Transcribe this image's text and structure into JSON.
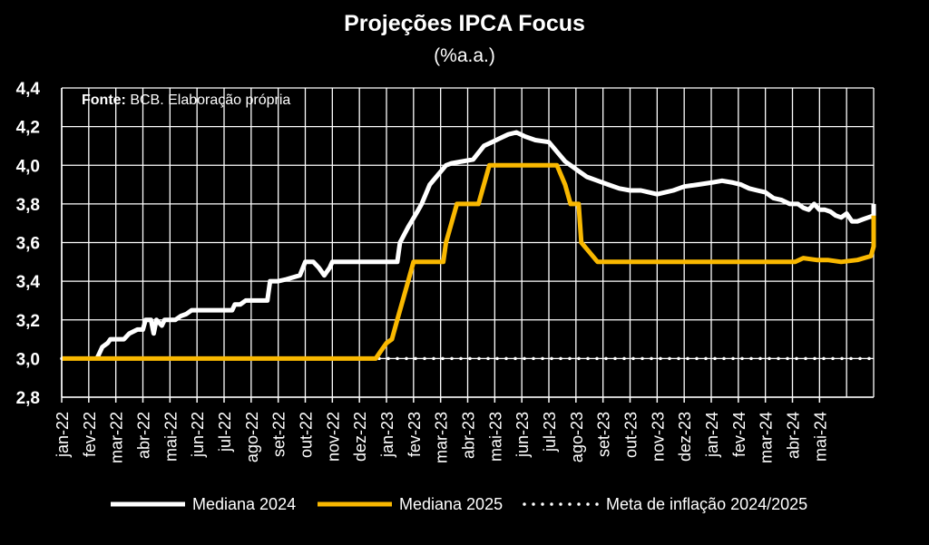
{
  "chart_data": {
    "type": "line",
    "title": "Projeções IPCA Focus",
    "subtitle": "(%a.a.)",
    "source_label": "Fonte:",
    "source_text": " BCB. Elaboração própria",
    "ylim": [
      2.8,
      4.4
    ],
    "y_ticks": [
      "4,4",
      "4,2",
      "4,0",
      "3,8",
      "3,6",
      "3,4",
      "3,2",
      "3,0",
      "2,8"
    ],
    "y_tick_values": [
      4.4,
      4.2,
      4.0,
      3.8,
      3.6,
      3.4,
      3.2,
      3.0,
      2.8
    ],
    "categories": [
      "jan-22",
      "fev-22",
      "mar-22",
      "abr-22",
      "mai-22",
      "jun-22",
      "jul-22",
      "ago-22",
      "set-22",
      "out-22",
      "nov-22",
      "dez-22",
      "jan-23",
      "fev-23",
      "mar-23",
      "abr-23",
      "mai-23",
      "jun-23",
      "jul-23",
      "ago-23",
      "set-23",
      "out-23",
      "nov-23",
      "dez-23",
      "jan-24",
      "fev-24",
      "mar-24",
      "abr-24",
      "mai-24"
    ],
    "x_max": 30,
    "grid": true,
    "legend_position": "bottom",
    "series": [
      {
        "name": "Mediana 2024",
        "color": "#ffffff",
        "style": "solid",
        "points": [
          [
            1.3,
            3.0
          ],
          [
            1.4,
            3.03
          ],
          [
            1.5,
            3.06
          ],
          [
            1.7,
            3.08
          ],
          [
            1.8,
            3.1
          ],
          [
            2.3,
            3.1
          ],
          [
            2.5,
            3.13
          ],
          [
            2.8,
            3.15
          ],
          [
            3.0,
            3.15
          ],
          [
            3.1,
            3.2
          ],
          [
            3.3,
            3.2
          ],
          [
            3.4,
            3.13
          ],
          [
            3.5,
            3.2
          ],
          [
            3.7,
            3.17
          ],
          [
            3.8,
            3.2
          ],
          [
            4.2,
            3.2
          ],
          [
            4.4,
            3.22
          ],
          [
            4.6,
            3.23
          ],
          [
            4.8,
            3.25
          ],
          [
            6.3,
            3.25
          ],
          [
            6.4,
            3.28
          ],
          [
            6.6,
            3.28
          ],
          [
            6.8,
            3.3
          ],
          [
            7.6,
            3.3
          ],
          [
            7.7,
            3.4
          ],
          [
            8.0,
            3.4
          ],
          [
            8.3,
            3.41
          ],
          [
            8.8,
            3.43
          ],
          [
            9.0,
            3.5
          ],
          [
            9.3,
            3.5
          ],
          [
            9.5,
            3.47
          ],
          [
            9.7,
            3.43
          ],
          [
            9.9,
            3.47
          ],
          [
            10.0,
            3.5
          ],
          [
            12.4,
            3.5
          ],
          [
            12.5,
            3.6
          ],
          [
            12.8,
            3.68
          ],
          [
            13.1,
            3.75
          ],
          [
            13.3,
            3.8
          ],
          [
            13.6,
            3.9
          ],
          [
            13.9,
            3.95
          ],
          [
            14.2,
            4.0
          ],
          [
            14.4,
            4.01
          ],
          [
            14.8,
            4.02
          ],
          [
            15.2,
            4.03
          ],
          [
            15.6,
            4.1
          ],
          [
            15.9,
            4.12
          ],
          [
            16.2,
            4.14
          ],
          [
            16.5,
            4.16
          ],
          [
            16.8,
            4.17
          ],
          [
            17.1,
            4.15
          ],
          [
            17.5,
            4.13
          ],
          [
            18.0,
            4.12
          ],
          [
            18.3,
            4.07
          ],
          [
            18.6,
            4.02
          ],
          [
            19.0,
            3.98
          ],
          [
            19.4,
            3.94
          ],
          [
            19.8,
            3.92
          ],
          [
            20.2,
            3.9
          ],
          [
            20.6,
            3.88
          ],
          [
            21.0,
            3.87
          ],
          [
            21.4,
            3.87
          ],
          [
            21.7,
            3.86
          ],
          [
            22.0,
            3.85
          ],
          [
            22.3,
            3.86
          ],
          [
            22.6,
            3.87
          ],
          [
            23.0,
            3.89
          ],
          [
            23.5,
            3.9
          ],
          [
            24.0,
            3.91
          ],
          [
            24.4,
            3.92
          ],
          [
            24.8,
            3.91
          ],
          [
            25.1,
            3.9
          ],
          [
            25.4,
            3.88
          ],
          [
            25.7,
            3.87
          ],
          [
            26.0,
            3.86
          ],
          [
            26.3,
            3.83
          ],
          [
            26.6,
            3.82
          ],
          [
            26.9,
            3.8
          ],
          [
            27.2,
            3.8
          ],
          [
            27.4,
            3.78
          ],
          [
            27.6,
            3.77
          ],
          [
            27.8,
            3.8
          ],
          [
            28.0,
            3.77
          ],
          [
            28.2,
            3.77
          ],
          [
            28.4,
            3.76
          ],
          [
            28.6,
            3.74
          ],
          [
            28.8,
            3.73
          ],
          [
            29.0,
            3.75
          ],
          [
            29.2,
            3.71
          ],
          [
            29.4,
            3.71
          ],
          [
            29.6,
            3.72
          ],
          [
            29.8,
            3.73
          ],
          [
            30.0,
            3.74
          ],
          [
            30.2,
            3.73
          ],
          [
            30.4,
            3.73
          ],
          [
            30.6,
            3.76
          ],
          [
            30.8,
            3.78
          ],
          [
            31.0,
            3.8
          ]
        ]
      },
      {
        "name": "Mediana 2025",
        "color": "#f9b800",
        "style": "solid",
        "points": [
          [
            0.0,
            3.0
          ],
          [
            11.6,
            3.0
          ],
          [
            11.8,
            3.04
          ],
          [
            12.0,
            3.08
          ],
          [
            12.2,
            3.1
          ],
          [
            12.4,
            3.2
          ],
          [
            12.6,
            3.3
          ],
          [
            12.8,
            3.4
          ],
          [
            13.0,
            3.5
          ],
          [
            14.1,
            3.5
          ],
          [
            14.2,
            3.6
          ],
          [
            14.4,
            3.7
          ],
          [
            14.6,
            3.8
          ],
          [
            15.4,
            3.8
          ],
          [
            15.6,
            3.9
          ],
          [
            15.8,
            4.0
          ],
          [
            18.3,
            4.0
          ],
          [
            18.6,
            3.9
          ],
          [
            18.8,
            3.8
          ],
          [
            19.1,
            3.8
          ],
          [
            19.2,
            3.6
          ],
          [
            19.5,
            3.55
          ],
          [
            19.8,
            3.5
          ],
          [
            27.1,
            3.5
          ],
          [
            27.4,
            3.52
          ],
          [
            27.9,
            3.51
          ],
          [
            28.3,
            3.51
          ],
          [
            28.8,
            3.5
          ],
          [
            29.4,
            3.51
          ],
          [
            29.9,
            3.53
          ],
          [
            30.1,
            3.58
          ],
          [
            30.4,
            3.6
          ],
          [
            30.7,
            3.63
          ],
          [
            31.0,
            3.67
          ],
          [
            31.0,
            3.74
          ]
        ]
      },
      {
        "name": "Meta de inflação 2024/2025",
        "color": "#ffffff",
        "style": "dotted",
        "points": [
          [
            0.0,
            3.0
          ],
          [
            31.0,
            3.0
          ]
        ]
      }
    ]
  }
}
